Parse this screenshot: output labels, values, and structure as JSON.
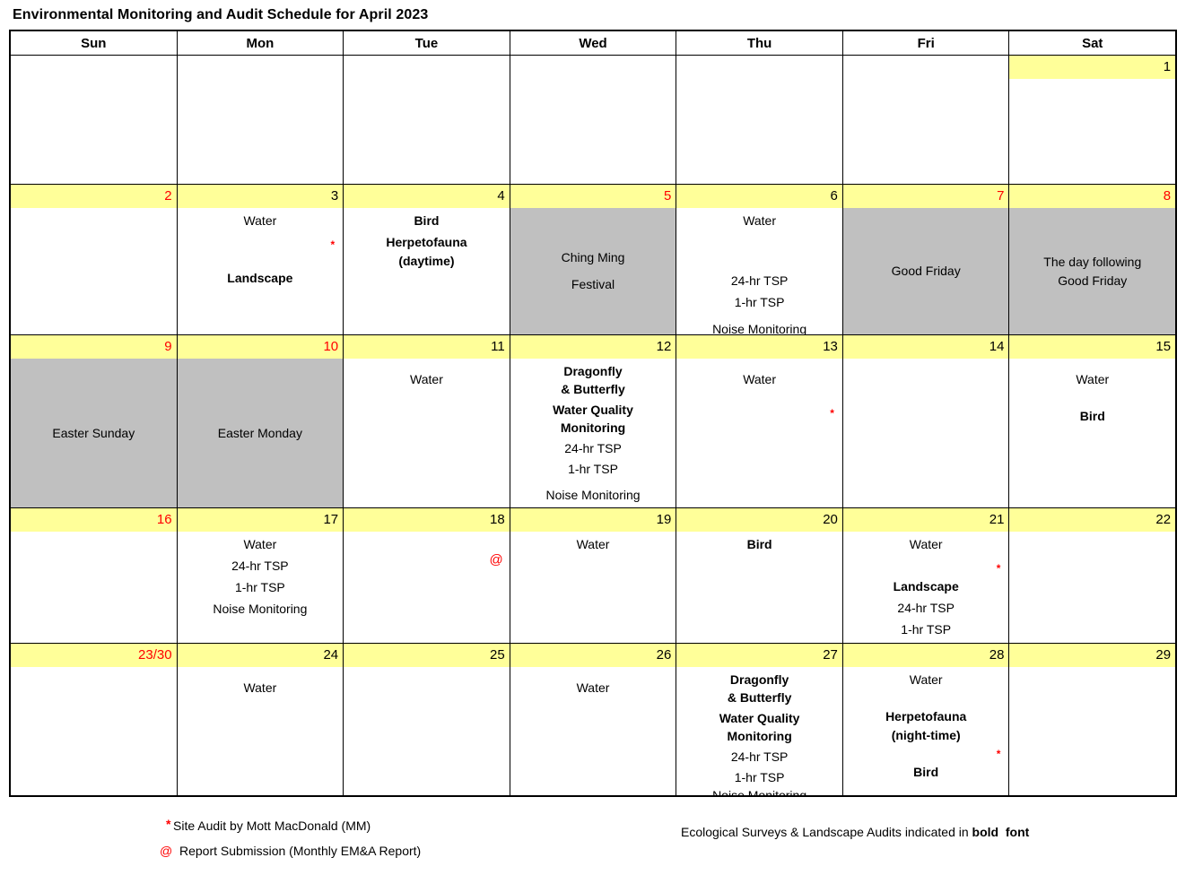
{
  "title": "Environmental Monitoring and Audit Schedule for April 2023",
  "colors": {
    "highlight": "#FFFF99",
    "holiday": "#C0C0C0",
    "red": "#FF0000"
  },
  "day_headers": [
    "Sun",
    "Mon",
    "Tue",
    "Wed",
    "Thu",
    "Fri",
    "Sat"
  ],
  "weeks": [
    {
      "cells": [
        {
          "date": "",
          "yellow": false,
          "lines": []
        },
        {
          "date": "",
          "yellow": false,
          "lines": []
        },
        {
          "date": "",
          "yellow": false,
          "lines": []
        },
        {
          "date": "",
          "yellow": false,
          "lines": []
        },
        {
          "date": "",
          "yellow": false,
          "lines": []
        },
        {
          "date": "",
          "yellow": false,
          "lines": []
        },
        {
          "date": "1",
          "yellow": true,
          "red": false,
          "lines": []
        }
      ]
    },
    {
      "cells": [
        {
          "date": "2",
          "yellow": true,
          "red": true,
          "lines": []
        },
        {
          "date": "3",
          "yellow": true,
          "red": false,
          "lines": [
            {
              "text": "Water"
            },
            {
              "text": "*",
              "marker": "asterisk",
              "gap": "sm"
            },
            {
              "text": "Landscape",
              "bold": true,
              "gap": "md"
            }
          ]
        },
        {
          "date": "4",
          "yellow": true,
          "red": false,
          "lines": [
            {
              "text": "Bird",
              "bold": true
            },
            {
              "text": "Herpetofauna",
              "bold": true,
              "gap": "xs"
            },
            {
              "text": "(daytime)",
              "bold": true
            }
          ]
        },
        {
          "date": "5",
          "yellow": true,
          "red": true,
          "holiday": true,
          "lines": [
            {
              "text": "Ching Ming"
            },
            {
              "text": "Festival",
              "gap": "sm"
            }
          ]
        },
        {
          "date": "6",
          "yellow": true,
          "red": false,
          "lines": [
            {
              "text": "Water"
            },
            {
              "text": "24-hr TSP",
              "gap": "lg"
            },
            {
              "text": "1-hr TSP",
              "gap": "xs"
            },
            {
              "text": "Noise Monitoring",
              "gap": "sm"
            }
          ]
        },
        {
          "date": "7",
          "yellow": true,
          "red": true,
          "holiday": true,
          "lines": [
            {
              "text": "Good Friday"
            }
          ]
        },
        {
          "date": "8",
          "yellow": true,
          "red": true,
          "holiday": true,
          "lines": [
            {
              "text": "The day following"
            },
            {
              "text": "Good Friday"
            }
          ]
        }
      ]
    },
    {
      "cells": [
        {
          "date": "9",
          "yellow": true,
          "red": true,
          "holiday": true,
          "lines": [
            {
              "text": "Easter Sunday"
            }
          ]
        },
        {
          "date": "10",
          "yellow": true,
          "red": true,
          "holiday": true,
          "lines": [
            {
              "text": "Easter Monday"
            }
          ]
        },
        {
          "date": "11",
          "yellow": true,
          "red": false,
          "lines": [
            {
              "text": "Water",
              "gap": "sm"
            }
          ]
        },
        {
          "date": "12",
          "yellow": true,
          "red": false,
          "lines": [
            {
              "text": "Dragonfly",
              "bold": true
            },
            {
              "text": "& Butterfly",
              "bold": true
            },
            {
              "text": "Water Quality",
              "bold": true,
              "gap": "xs"
            },
            {
              "text": "Monitoring",
              "bold": true
            },
            {
              "text": "24-hr TSP",
              "gap": "xs"
            },
            {
              "text": "1-hr TSP",
              "gap": "xs"
            },
            {
              "text": "Noise Monitoring",
              "gap": "sm"
            }
          ]
        },
        {
          "date": "13",
          "yellow": true,
          "red": false,
          "lines": [
            {
              "text": "Water",
              "gap": "sm"
            },
            {
              "text": "*",
              "marker": "asterisk",
              "gap": "md"
            }
          ]
        },
        {
          "date": "14",
          "yellow": true,
          "red": false,
          "lines": []
        },
        {
          "date": "15",
          "yellow": true,
          "red": false,
          "lines": [
            {
              "text": "Water",
              "gap": "sm"
            },
            {
              "text": "Bird",
              "bold": true,
              "gap": "md"
            }
          ]
        }
      ]
    },
    {
      "cells": [
        {
          "date": "16",
          "yellow": true,
          "red": true,
          "lines": []
        },
        {
          "date": "17",
          "yellow": true,
          "red": false,
          "lines": [
            {
              "text": "Water"
            },
            {
              "text": "24-hr TSP",
              "gap": "xs"
            },
            {
              "text": "1-hr TSP",
              "gap": "xs"
            },
            {
              "text": "Noise Monitoring",
              "gap": "xs"
            }
          ]
        },
        {
          "date": "18",
          "yellow": true,
          "red": false,
          "lines": [
            {
              "text": "@",
              "marker": "at",
              "gap": "md"
            }
          ]
        },
        {
          "date": "19",
          "yellow": true,
          "red": false,
          "lines": [
            {
              "text": "Water"
            }
          ]
        },
        {
          "date": "20",
          "yellow": true,
          "red": false,
          "lines": [
            {
              "text": "Bird",
              "bold": true
            }
          ]
        },
        {
          "date": "21",
          "yellow": true,
          "red": false,
          "lines": [
            {
              "text": "Water"
            },
            {
              "text": "*",
              "marker": "asterisk",
              "gap": "sm"
            },
            {
              "text": "Landscape",
              "bold": true,
              "gap": "xs"
            },
            {
              "text": "24-hr TSP",
              "gap": "xs"
            },
            {
              "text": "1-hr TSP",
              "gap": "xs"
            }
          ]
        },
        {
          "date": "22",
          "yellow": true,
          "red": false,
          "lines": []
        }
      ]
    },
    {
      "cells": [
        {
          "date": "23/30",
          "yellow": true,
          "red": true,
          "lines": []
        },
        {
          "date": "24",
          "yellow": true,
          "red": false,
          "lines": [
            {
              "text": "Water",
              "gap": "sm"
            }
          ]
        },
        {
          "date": "25",
          "yellow": true,
          "red": false,
          "lines": []
        },
        {
          "date": "26",
          "yellow": true,
          "red": false,
          "lines": [
            {
              "text": "Water",
              "gap": "sm"
            }
          ]
        },
        {
          "date": "27",
          "yellow": true,
          "red": false,
          "lines": [
            {
              "text": "Dragonfly",
              "bold": true
            },
            {
              "text": "& Butterfly",
              "bold": true
            },
            {
              "text": "Water Quality",
              "bold": true,
              "gap": "xs"
            },
            {
              "text": "Monitoring",
              "bold": true
            },
            {
              "text": "24-hr TSP",
              "gap": "xs"
            },
            {
              "text": "1-hr TSP",
              "gap": "xs"
            },
            {
              "text": "Noise Monitoring"
            }
          ]
        },
        {
          "date": "28",
          "yellow": true,
          "red": false,
          "lines": [
            {
              "text": "Water"
            },
            {
              "text": "Herpetofauna",
              "bold": true,
              "gap": "md"
            },
            {
              "text": "(night-time)",
              "bold": true
            },
            {
              "text": "*",
              "marker": "asterisk",
              "gap": "xs"
            },
            {
              "text": "Bird",
              "bold": true,
              "gap": "xs"
            }
          ]
        },
        {
          "date": "29",
          "yellow": true,
          "red": false,
          "lines": []
        }
      ]
    }
  ],
  "legend": {
    "site_audit_symbol": "*",
    "site_audit_text": "Site Audit by Mott MacDonald (MM)",
    "report_symbol": "@",
    "report_text": "Report Submission (Monthly EM&A Report)",
    "note_prefix": "Ecological Surveys & Landscape Audits indicated in ",
    "note_bold": "bold  font"
  }
}
